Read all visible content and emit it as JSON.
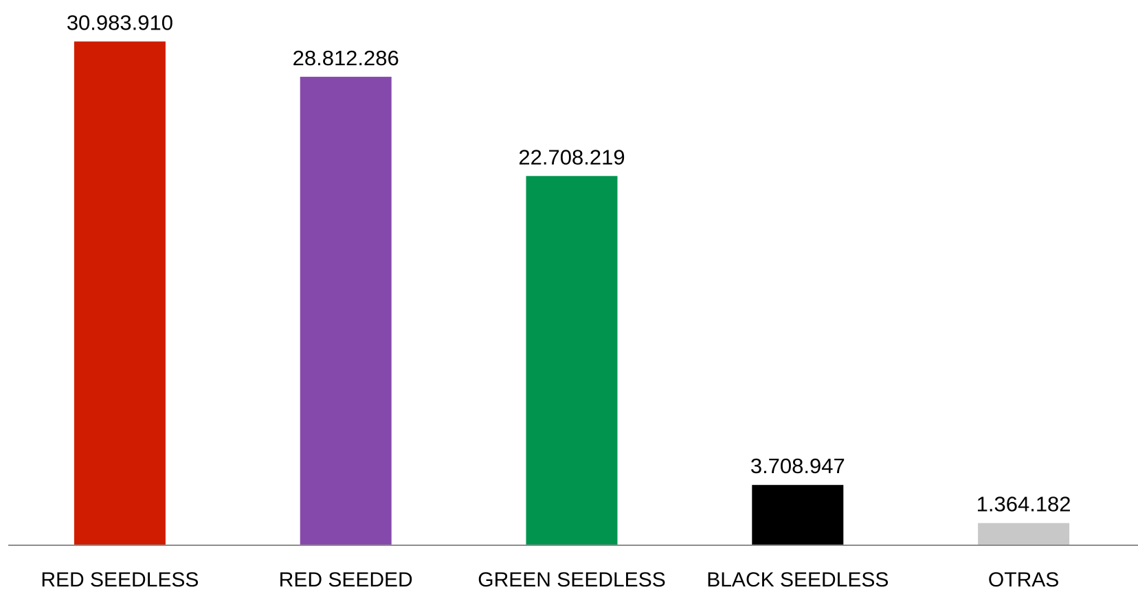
{
  "chart_data": {
    "type": "bar",
    "categories": [
      "RED SEEDLESS",
      "RED SEEDED",
      "GREEN SEEDLESS",
      "BLACK SEEDLESS",
      "OTRAS"
    ],
    "values": [
      30983910,
      28812286,
      22708219,
      3708947,
      1364182
    ],
    "data_labels": [
      "30.983.910",
      "28.812.286",
      "22.708.219",
      "3.708.947",
      "1.364.182"
    ],
    "colors": [
      "#d01c00",
      "#8549ac",
      "#00944f",
      "#000000",
      "#c8c8c8"
    ],
    "ylim": [
      0,
      31000000
    ],
    "title": "",
    "xlabel": "",
    "ylabel": "",
    "grid": false,
    "legend": "none"
  }
}
